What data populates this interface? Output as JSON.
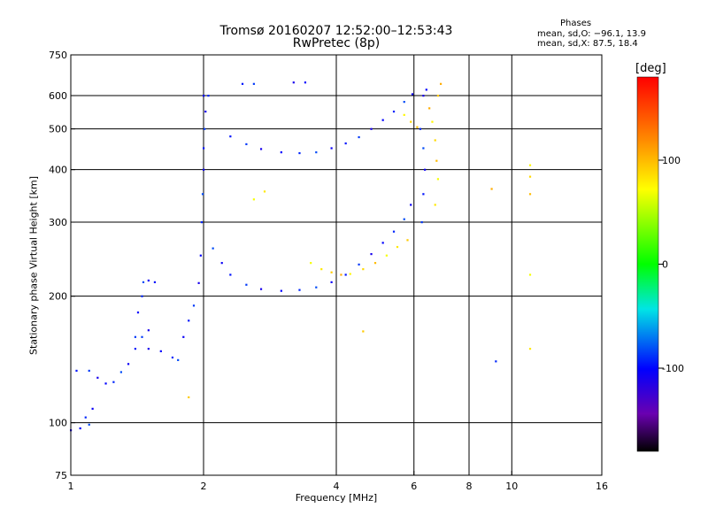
{
  "chart_data": {
    "type": "scatter",
    "title": "Tromsø 20160207 12:52:00–12:53:43",
    "subtitle": "RwPretec (8p)",
    "xlabel": "Frequency [MHz]",
    "ylabel": "Stationary phase Virtual Height [km]",
    "x_scale": "log",
    "y_scale": "log",
    "xlim": [
      1,
      16
    ],
    "ylim": [
      75,
      750
    ],
    "x_ticks": [
      1,
      2,
      4,
      6,
      8,
      10,
      16
    ],
    "x_ticklabels": [
      "1",
      "2",
      "4",
      "6",
      "8",
      "10",
      "16"
    ],
    "y_ticks": [
      75,
      100,
      200,
      300,
      400,
      500,
      600,
      750
    ],
    "y_ticklabels": [
      "75",
      "100",
      "200",
      "300",
      "400",
      "500",
      "600",
      "750"
    ],
    "grid": true,
    "colorbar": {
      "label": "[deg]",
      "range": [
        -180,
        180
      ],
      "ticks": [
        100,
        0,
        -100
      ],
      "ticklabels": [
        "100",
        "0",
        "-100"
      ]
    },
    "stats": {
      "heading": "Phases",
      "line_o": "mean, sd,O: −96.1, 13.9",
      "line_x": "mean, sd,X:  87.5, 18.4"
    },
    "series": [
      {
        "role": "o-mode traces",
        "phase_mean": -96.1,
        "phase_sd": 13.9,
        "points": [
          [
            1.0,
            96
          ],
          [
            1.05,
            97
          ],
          [
            1.08,
            103
          ],
          [
            1.1,
            99
          ],
          [
            1.12,
            108
          ],
          [
            1.03,
            133
          ],
          [
            1.1,
            133
          ],
          [
            1.15,
            128
          ],
          [
            1.2,
            124
          ],
          [
            1.25,
            125
          ],
          [
            1.3,
            132
          ],
          [
            1.35,
            138
          ],
          [
            1.4,
            150
          ],
          [
            1.45,
            160
          ],
          [
            1.5,
            166
          ],
          [
            1.42,
            183
          ],
          [
            1.45,
            200
          ],
          [
            1.46,
            216
          ],
          [
            1.5,
            218
          ],
          [
            1.55,
            216
          ],
          [
            1.4,
            160
          ],
          [
            1.5,
            150
          ],
          [
            1.6,
            148
          ],
          [
            1.7,
            143
          ],
          [
            1.75,
            141
          ],
          [
            1.8,
            160
          ],
          [
            1.85,
            175
          ],
          [
            1.9,
            190
          ],
          [
            1.95,
            215
          ],
          [
            1.97,
            250
          ],
          [
            1.98,
            300
          ],
          [
            1.99,
            350
          ],
          [
            2.0,
            400
          ],
          [
            2.0,
            450
          ],
          [
            2.01,
            500
          ],
          [
            2.02,
            550
          ],
          [
            2.0,
            600
          ],
          [
            2.05,
            600
          ],
          [
            2.1,
            260
          ],
          [
            2.2,
            240
          ],
          [
            2.3,
            225
          ],
          [
            2.5,
            213
          ],
          [
            2.7,
            208
          ],
          [
            3.0,
            206
          ],
          [
            3.3,
            207
          ],
          [
            3.6,
            210
          ],
          [
            3.9,
            216
          ],
          [
            4.2,
            225
          ],
          [
            4.5,
            238
          ],
          [
            4.8,
            252
          ],
          [
            5.1,
            268
          ],
          [
            5.4,
            285
          ],
          [
            5.7,
            305
          ],
          [
            5.9,
            330
          ],
          [
            2.3,
            480
          ],
          [
            2.5,
            460
          ],
          [
            2.7,
            448
          ],
          [
            3.0,
            440
          ],
          [
            3.3,
            438
          ],
          [
            3.6,
            440
          ],
          [
            3.9,
            450
          ],
          [
            4.2,
            462
          ],
          [
            4.5,
            478
          ],
          [
            4.8,
            500
          ],
          [
            5.1,
            525
          ],
          [
            5.4,
            550
          ],
          [
            5.7,
            580
          ],
          [
            5.95,
            605
          ],
          [
            2.45,
            640
          ],
          [
            2.6,
            640
          ],
          [
            3.2,
            645
          ],
          [
            3.4,
            645
          ],
          [
            6.2,
            500
          ],
          [
            6.3,
            450
          ],
          [
            6.35,
            400
          ],
          [
            6.3,
            350
          ],
          [
            6.25,
            300
          ],
          [
            6.3,
            600
          ],
          [
            6.4,
            620
          ],
          [
            9.2,
            140
          ]
        ]
      },
      {
        "role": "x-mode traces",
        "phase_mean": 87.5,
        "phase_sd": 18.4,
        "points": [
          [
            3.5,
            240
          ],
          [
            3.7,
            232
          ],
          [
            3.9,
            228
          ],
          [
            4.1,
            225
          ],
          [
            4.3,
            226
          ],
          [
            4.6,
            232
          ],
          [
            4.9,
            240
          ],
          [
            5.2,
            250
          ],
          [
            5.5,
            262
          ],
          [
            5.8,
            272
          ],
          [
            6.5,
            560
          ],
          [
            6.6,
            520
          ],
          [
            6.7,
            470
          ],
          [
            6.75,
            420
          ],
          [
            6.8,
            380
          ],
          [
            6.7,
            330
          ],
          [
            6.8,
            600
          ],
          [
            6.9,
            640
          ],
          [
            5.7,
            540
          ],
          [
            5.9,
            520
          ],
          [
            6.1,
            505
          ],
          [
            2.6,
            340
          ],
          [
            2.75,
            355
          ],
          [
            4.6,
            165
          ],
          [
            9.0,
            360
          ],
          [
            11.0,
            410
          ],
          [
            11.0,
            385
          ],
          [
            11.0,
            350
          ],
          [
            11.0,
            225
          ],
          [
            11.0,
            150
          ],
          [
            1.85,
            115
          ]
        ]
      }
    ]
  }
}
